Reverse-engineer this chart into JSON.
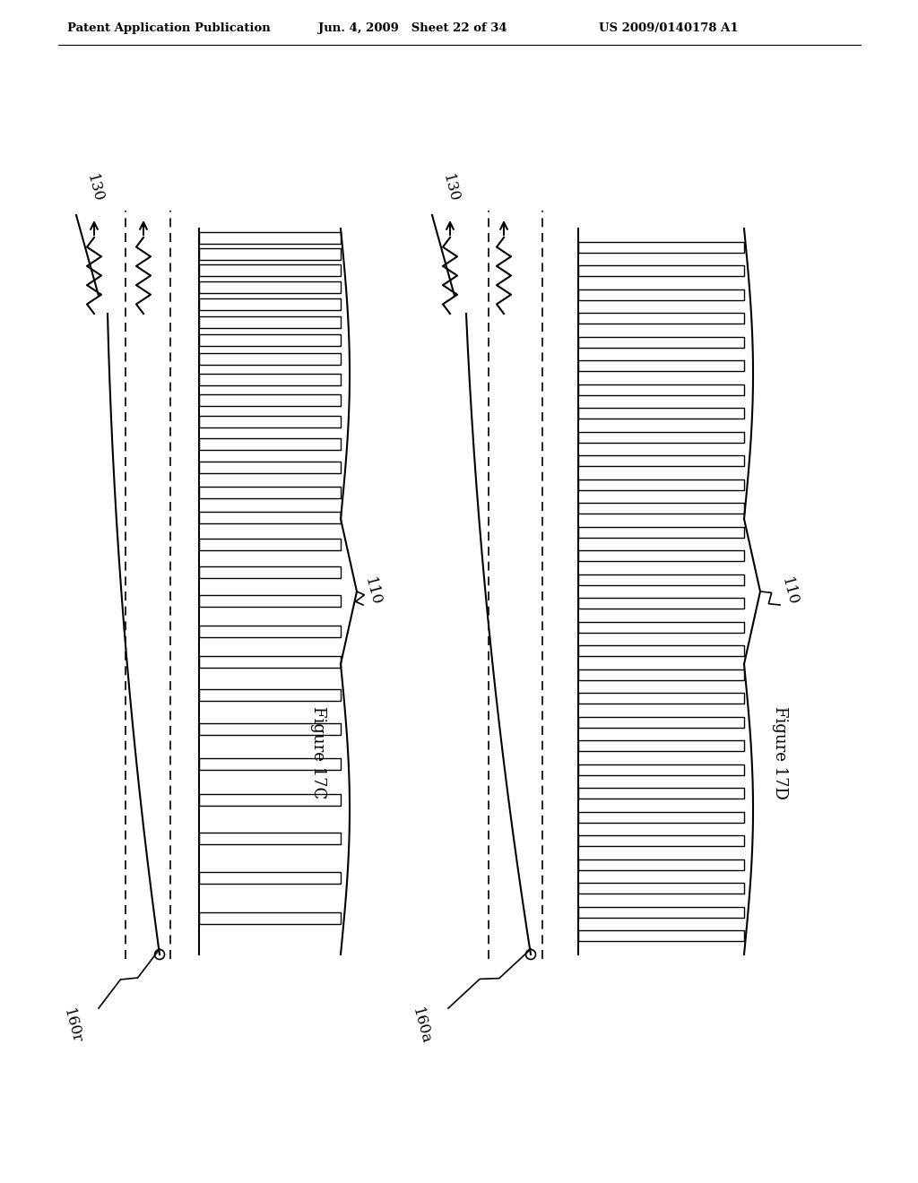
{
  "header_left": "Patent Application Publication",
  "header_mid": "Jun. 4, 2009   Sheet 22 of 34",
  "header_right": "US 2009/0140178 A1",
  "fig_c_label": "Figure 17C",
  "fig_d_label": "Figure 17D",
  "label_130": "130",
  "label_110_c": "110",
  "label_110_d": "110",
  "label_160r": "160r",
  "label_160a": "160a",
  "bg_color": "#ffffff",
  "line_color": "#000000"
}
